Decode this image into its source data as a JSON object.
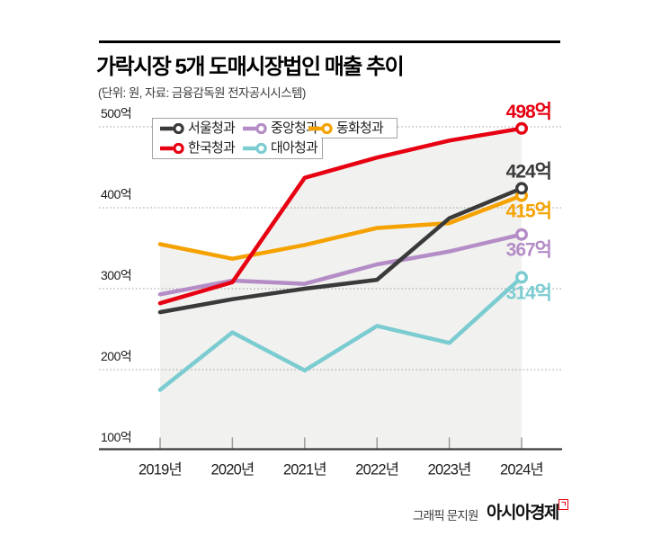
{
  "header": {
    "title": "가락시장 5개 도매시장법인 매출 추이",
    "subtitle": "(단위: 원, 자료: 금융감독원 전자공시시스템)"
  },
  "footer": {
    "credit": "그래픽 문지원",
    "brand": "아시아경제",
    "brand_mark": "ㄱ"
  },
  "chart_data": {
    "type": "line",
    "title": "가락시장 5개 도매시장법인 매출 추이",
    "unit_source_note": "(단위: 원, 자료: 금융감독원 전자공시시스템)",
    "categories": [
      "2019년",
      "2020년",
      "2021년",
      "2022년",
      "2023년",
      "2024년"
    ],
    "ylim": [
      100,
      500
    ],
    "ylabel_ticks": [
      {
        "label": "500억",
        "value": 500
      },
      {
        "label": "400억",
        "value": 400
      },
      {
        "label": "300억",
        "value": 300
      },
      {
        "label": "200억",
        "value": 200
      },
      {
        "label": "100억",
        "value": 100
      }
    ],
    "grid": "horizontal-dotted",
    "legend_position": "top-left-inside",
    "legend_rows": [
      [
        0,
        2,
        3
      ],
      [
        1,
        4
      ]
    ],
    "area_fill_color": "#f1f1ef",
    "draw_order": [
      4,
      2,
      3,
      0,
      1
    ],
    "series": [
      {
        "name": "서울청과",
        "color": "#3a3a3a",
        "values": [
          271,
          287,
          300,
          311,
          387,
          424
        ],
        "end_label": "424억",
        "end_label_side": "above"
      },
      {
        "name": "한국청과",
        "color": "#e60012",
        "values": [
          282,
          308,
          437,
          462,
          483,
          498
        ],
        "end_label": "498억",
        "end_label_side": "above"
      },
      {
        "name": "중앙청과",
        "color": "#b48cc6",
        "values": [
          293,
          310,
          306,
          330,
          346,
          367
        ],
        "end_label": "367억",
        "end_label_side": "below"
      },
      {
        "name": "동화청과",
        "color": "#f5a200",
        "values": [
          355,
          337,
          354,
          375,
          381,
          415
        ],
        "end_label": "415억",
        "end_label_side": "below"
      },
      {
        "name": "대아청과",
        "color": "#7bccd1",
        "values": [
          175,
          246,
          199,
          254,
          233,
          314
        ],
        "end_label": "314억",
        "end_label_side": "below"
      }
    ]
  }
}
